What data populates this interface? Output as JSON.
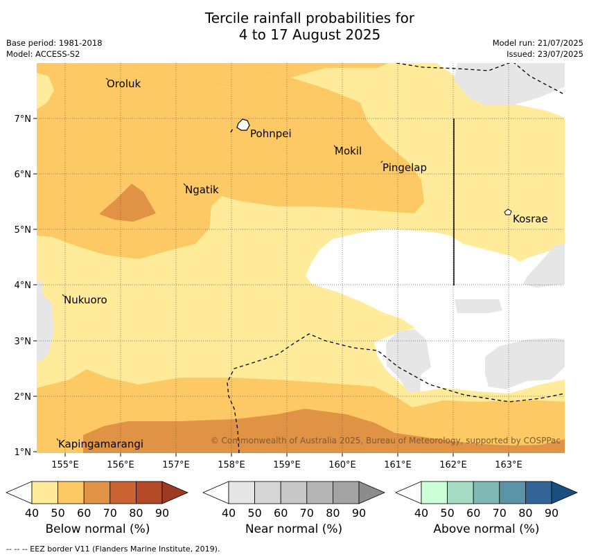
{
  "title": {
    "line1": "Tercile rainfall probabilities for",
    "line2": "4 to 17 August 2025"
  },
  "meta": {
    "base_period": "Base period: 1981-2018",
    "model": "Model: ACCESS-S2",
    "model_run": "Model run: 21/07/2025",
    "issued": "Issued: 23/07/2025"
  },
  "map": {
    "lon_ticks": [
      "155°E",
      "156°E",
      "157°E",
      "158°E",
      "159°E",
      "160°E",
      "161°E",
      "162°E",
      "163°E"
    ],
    "lat_ticks": [
      "7°N",
      "6°N",
      "5°N",
      "4°N",
      "3°N",
      "2°N",
      "1°N"
    ],
    "places": [
      "Oroluk",
      "Pohnpei",
      "Mokil",
      "Pingelap",
      "Ngatik",
      "Kosrae",
      "Nukuoro",
      "Kapingamarangi"
    ],
    "copyright": "© Commonwealth of Australia 2025, Bureau of Meteorology, supported by COSPPac"
  },
  "legend": {
    "ticks": [
      "40",
      "50",
      "60",
      "70",
      "80",
      "90"
    ],
    "below": {
      "title": "Below normal (%)",
      "colors": [
        "#ffeb99",
        "#fdc964",
        "#e09245",
        "#cc6333",
        "#b24a28",
        "#9e3a22"
      ]
    },
    "near": {
      "title": "Near normal (%)",
      "colors": [
        "#e6e6e6",
        "#d6d6d6",
        "#c8c8c8",
        "#b5b5b5",
        "#a3a3a3",
        "#8c8c8c"
      ]
    },
    "above": {
      "title": "Above normal (%)",
      "colors": [
        "#ccffd6",
        "#a6dcc4",
        "#80b8b3",
        "#5b94a6",
        "#346495",
        "#1a4d80"
      ]
    }
  },
  "footnote": "-- -- -- EEZ border V11 (Flanders Marine Institute, 2019)."
}
